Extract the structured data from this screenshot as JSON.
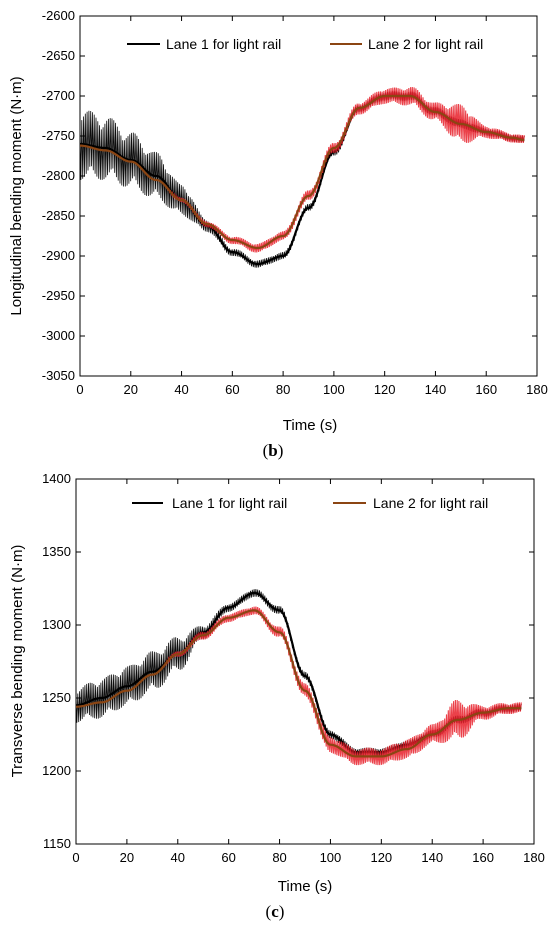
{
  "chart_data": [
    {
      "type": "line",
      "panel": "b",
      "caption_prefix": "(",
      "caption_letter": "b",
      "caption_suffix": ")",
      "title": "",
      "xlabel": "Time (s)",
      "ylabel": "Longitudinal bending moment (N·m)",
      "xlim": [
        0,
        180
      ],
      "ylim": [
        -3050,
        -2600
      ],
      "xticks": [
        0,
        20,
        40,
        60,
        80,
        100,
        120,
        140,
        160,
        180
      ],
      "yticks": [
        -3050,
        -3000,
        -2950,
        -2900,
        -2850,
        -2800,
        -2750,
        -2700,
        -2650,
        -2600
      ],
      "xtick_labels": [
        "0",
        "20",
        "40",
        "60",
        "80",
        "100",
        "120",
        "140",
        "160",
        "180"
      ],
      "ytick_labels": [
        "-3050",
        "-3000",
        "-2950",
        "-2900",
        "-2850",
        "-2800",
        "-2750",
        "-2700",
        "-2650",
        "-2600"
      ],
      "legend_position": "top",
      "x": [
        0,
        10,
        20,
        30,
        40,
        50,
        60,
        70,
        80,
        90,
        100,
        110,
        120,
        130,
        140,
        150,
        160,
        170,
        175
      ],
      "series": [
        {
          "name": "Lane 1 for light rail",
          "color": "#000000",
          "noise_amplitude": [
            45,
            40,
            35,
            30,
            20,
            8,
            5,
            5,
            5,
            5,
            5,
            5,
            6,
            6,
            6,
            6,
            5,
            5,
            5
          ],
          "values": [
            -2760,
            -2765,
            -2780,
            -2800,
            -2830,
            -2862,
            -2895,
            -2910,
            -2900,
            -2840,
            -2770,
            -2715,
            -2700,
            -2700,
            -2720,
            -2735,
            -2745,
            -2752,
            -2755
          ]
        },
        {
          "name": "Lane 2 for light rail",
          "color": "#8B4513",
          "overlay_color": "#e8202a",
          "noise_amplitude": [
            0,
            0,
            0,
            0,
            3,
            4,
            5,
            6,
            6,
            7,
            7,
            8,
            10,
            12,
            12,
            25,
            8,
            6,
            6
          ],
          "values": [
            -2762,
            -2768,
            -2782,
            -2805,
            -2830,
            -2860,
            -2880,
            -2890,
            -2875,
            -2825,
            -2765,
            -2715,
            -2700,
            -2700,
            -2720,
            -2735,
            -2745,
            -2752,
            -2755
          ]
        }
      ]
    },
    {
      "type": "line",
      "panel": "c",
      "caption_prefix": "(",
      "caption_letter": "c",
      "caption_suffix": ")",
      "title": "",
      "xlabel": "Time (s)",
      "ylabel": "Transverse bending moment (N·m)",
      "xlim": [
        0,
        180
      ],
      "ylim": [
        1150,
        1400
      ],
      "xticks": [
        0,
        20,
        40,
        60,
        80,
        100,
        120,
        140,
        160,
        180
      ],
      "yticks": [
        1150,
        1200,
        1250,
        1300,
        1350,
        1400
      ],
      "xtick_labels": [
        "0",
        "20",
        "40",
        "60",
        "80",
        "100",
        "120",
        "140",
        "160",
        "180"
      ],
      "ytick_labels": [
        "1150",
        "1200",
        "1250",
        "1300",
        "1350",
        "1400"
      ],
      "legend_position": "top",
      "x": [
        0,
        10,
        20,
        30,
        40,
        50,
        60,
        70,
        80,
        90,
        100,
        110,
        120,
        130,
        140,
        150,
        160,
        170,
        175
      ],
      "series": [
        {
          "name": "Lane 1 for light rail",
          "color": "#000000",
          "noise_amplitude": [
            12,
            14,
            14,
            14,
            12,
            5,
            3,
            3,
            3,
            3,
            3,
            3,
            3,
            3,
            3,
            3,
            3,
            3,
            3
          ],
          "values": [
            1245,
            1250,
            1258,
            1268,
            1280,
            1295,
            1312,
            1322,
            1310,
            1265,
            1225,
            1213,
            1213,
            1218,
            1225,
            1235,
            1240,
            1243,
            1243
          ]
        },
        {
          "name": "Lane 2 for light rail",
          "color": "#8B4513",
          "overlay_color": "#e8202a",
          "noise_amplitude": [
            0,
            0,
            0,
            0,
            2,
            3,
            3,
            3,
            4,
            5,
            6,
            6,
            6,
            7,
            7,
            14,
            5,
            4,
            4
          ],
          "values": [
            1244,
            1247,
            1255,
            1266,
            1280,
            1293,
            1305,
            1310,
            1295,
            1255,
            1218,
            1210,
            1210,
            1215,
            1225,
            1235,
            1240,
            1243,
            1243
          ]
        }
      ]
    }
  ]
}
